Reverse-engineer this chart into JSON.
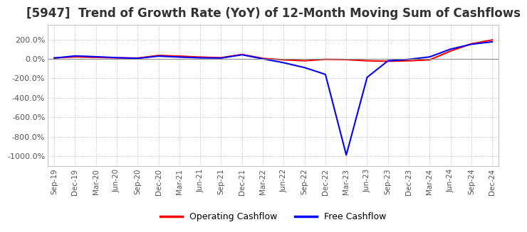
{
  "title": "[5947]  Trend of Growth Rate (YoY) of 12-Month Moving Sum of Cashflows",
  "title_fontsize": 12,
  "ylim": [
    -1100,
    350
  ],
  "yticks": [
    200,
    0,
    -200,
    -400,
    -600,
    -800,
    -1000
  ],
  "ytick_labels": [
    "200.0%",
    "0.0%",
    "-200.0%",
    "-400.0%",
    "-600.0%",
    "-800.0%",
    "-1000.0%"
  ],
  "background_color": "#ffffff",
  "plot_bg_color": "#ffffff",
  "grid_color": "#aaaaaa",
  "legend_labels": [
    "Operating Cashflow",
    "Free Cashflow"
  ],
  "legend_colors": [
    "#ff0000",
    "#0000ff"
  ],
  "x_labels": [
    "Sep-19",
    "Dec-19",
    "Mar-20",
    "Jun-20",
    "Sep-20",
    "Dec-20",
    "Mar-21",
    "Jun-21",
    "Sep-21",
    "Dec-21",
    "Mar-22",
    "Jun-22",
    "Sep-22",
    "Dec-22",
    "Mar-23",
    "Jun-23",
    "Sep-23",
    "Dec-23",
    "Mar-24",
    "Jun-24",
    "Sep-24",
    "Dec-24"
  ],
  "operating_cashflow": [
    10,
    20,
    15,
    10,
    8,
    35,
    28,
    18,
    12,
    45,
    5,
    -10,
    -20,
    -5,
    -8,
    -20,
    -25,
    -20,
    -10,
    80,
    155,
    195
  ],
  "free_cashflow": [
    8,
    30,
    22,
    12,
    5,
    28,
    18,
    10,
    8,
    42,
    0,
    -40,
    -90,
    -160,
    -990,
    -190,
    -20,
    -5,
    20,
    100,
    150,
    175
  ]
}
